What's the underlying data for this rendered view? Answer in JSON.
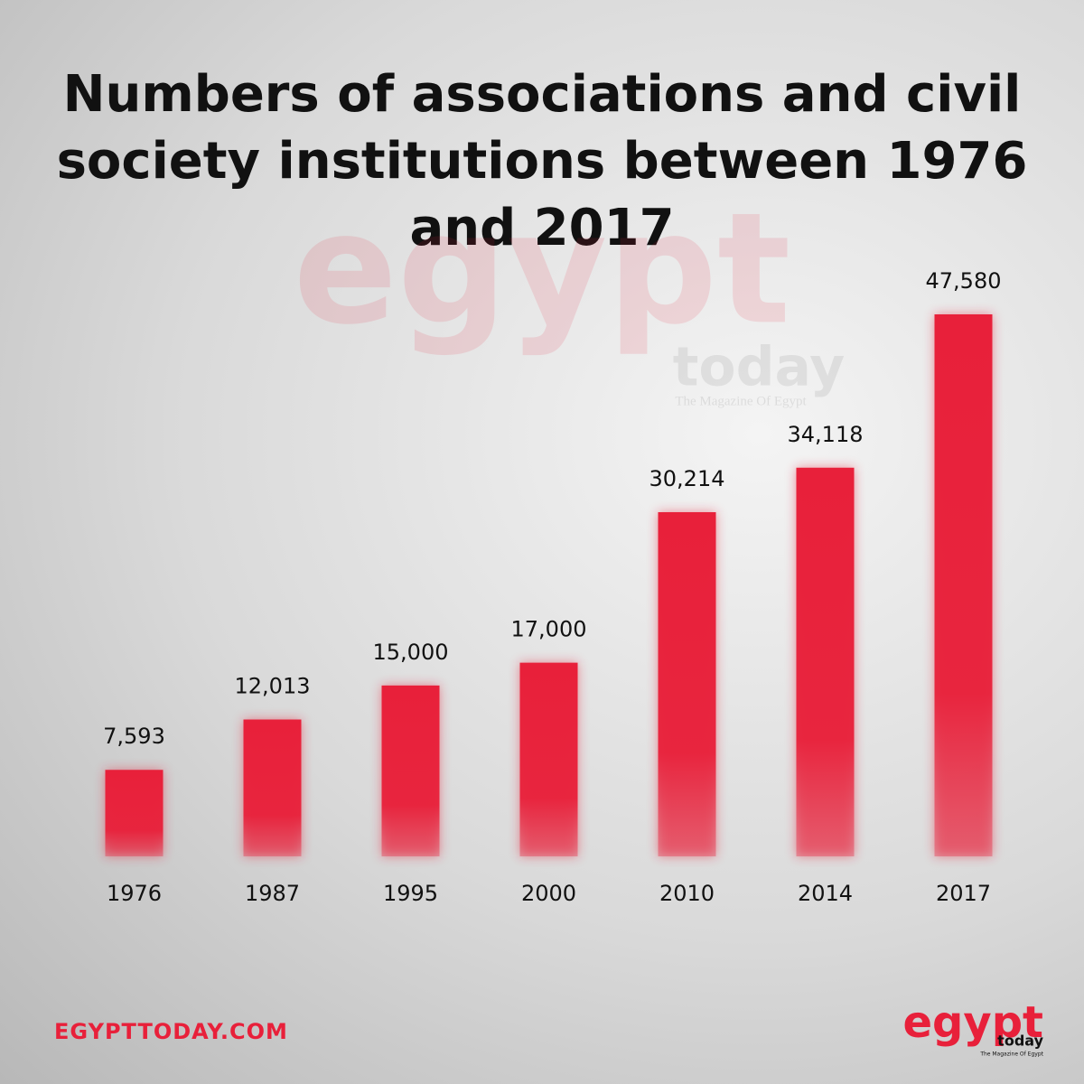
{
  "chart_data": {
    "type": "bar",
    "title": "Numbers of associations and civil society institutions between 1976 and 2017",
    "categories": [
      "1976",
      "1987",
      "1995",
      "2000",
      "2010",
      "2014",
      "2017"
    ],
    "values": [
      7593,
      12013,
      15000,
      17000,
      30214,
      34118,
      47580
    ],
    "value_labels": [
      "7,593",
      "12,013",
      "15,000",
      "17,000",
      "30,214",
      "34,118",
      "47,580"
    ],
    "color": "#e8203a"
  },
  "footer": {
    "website": "EGYPTTODAY.COM"
  },
  "logo": {
    "name": "egypt",
    "sub": "today",
    "tagline": "The Magazine Of Egypt"
  }
}
